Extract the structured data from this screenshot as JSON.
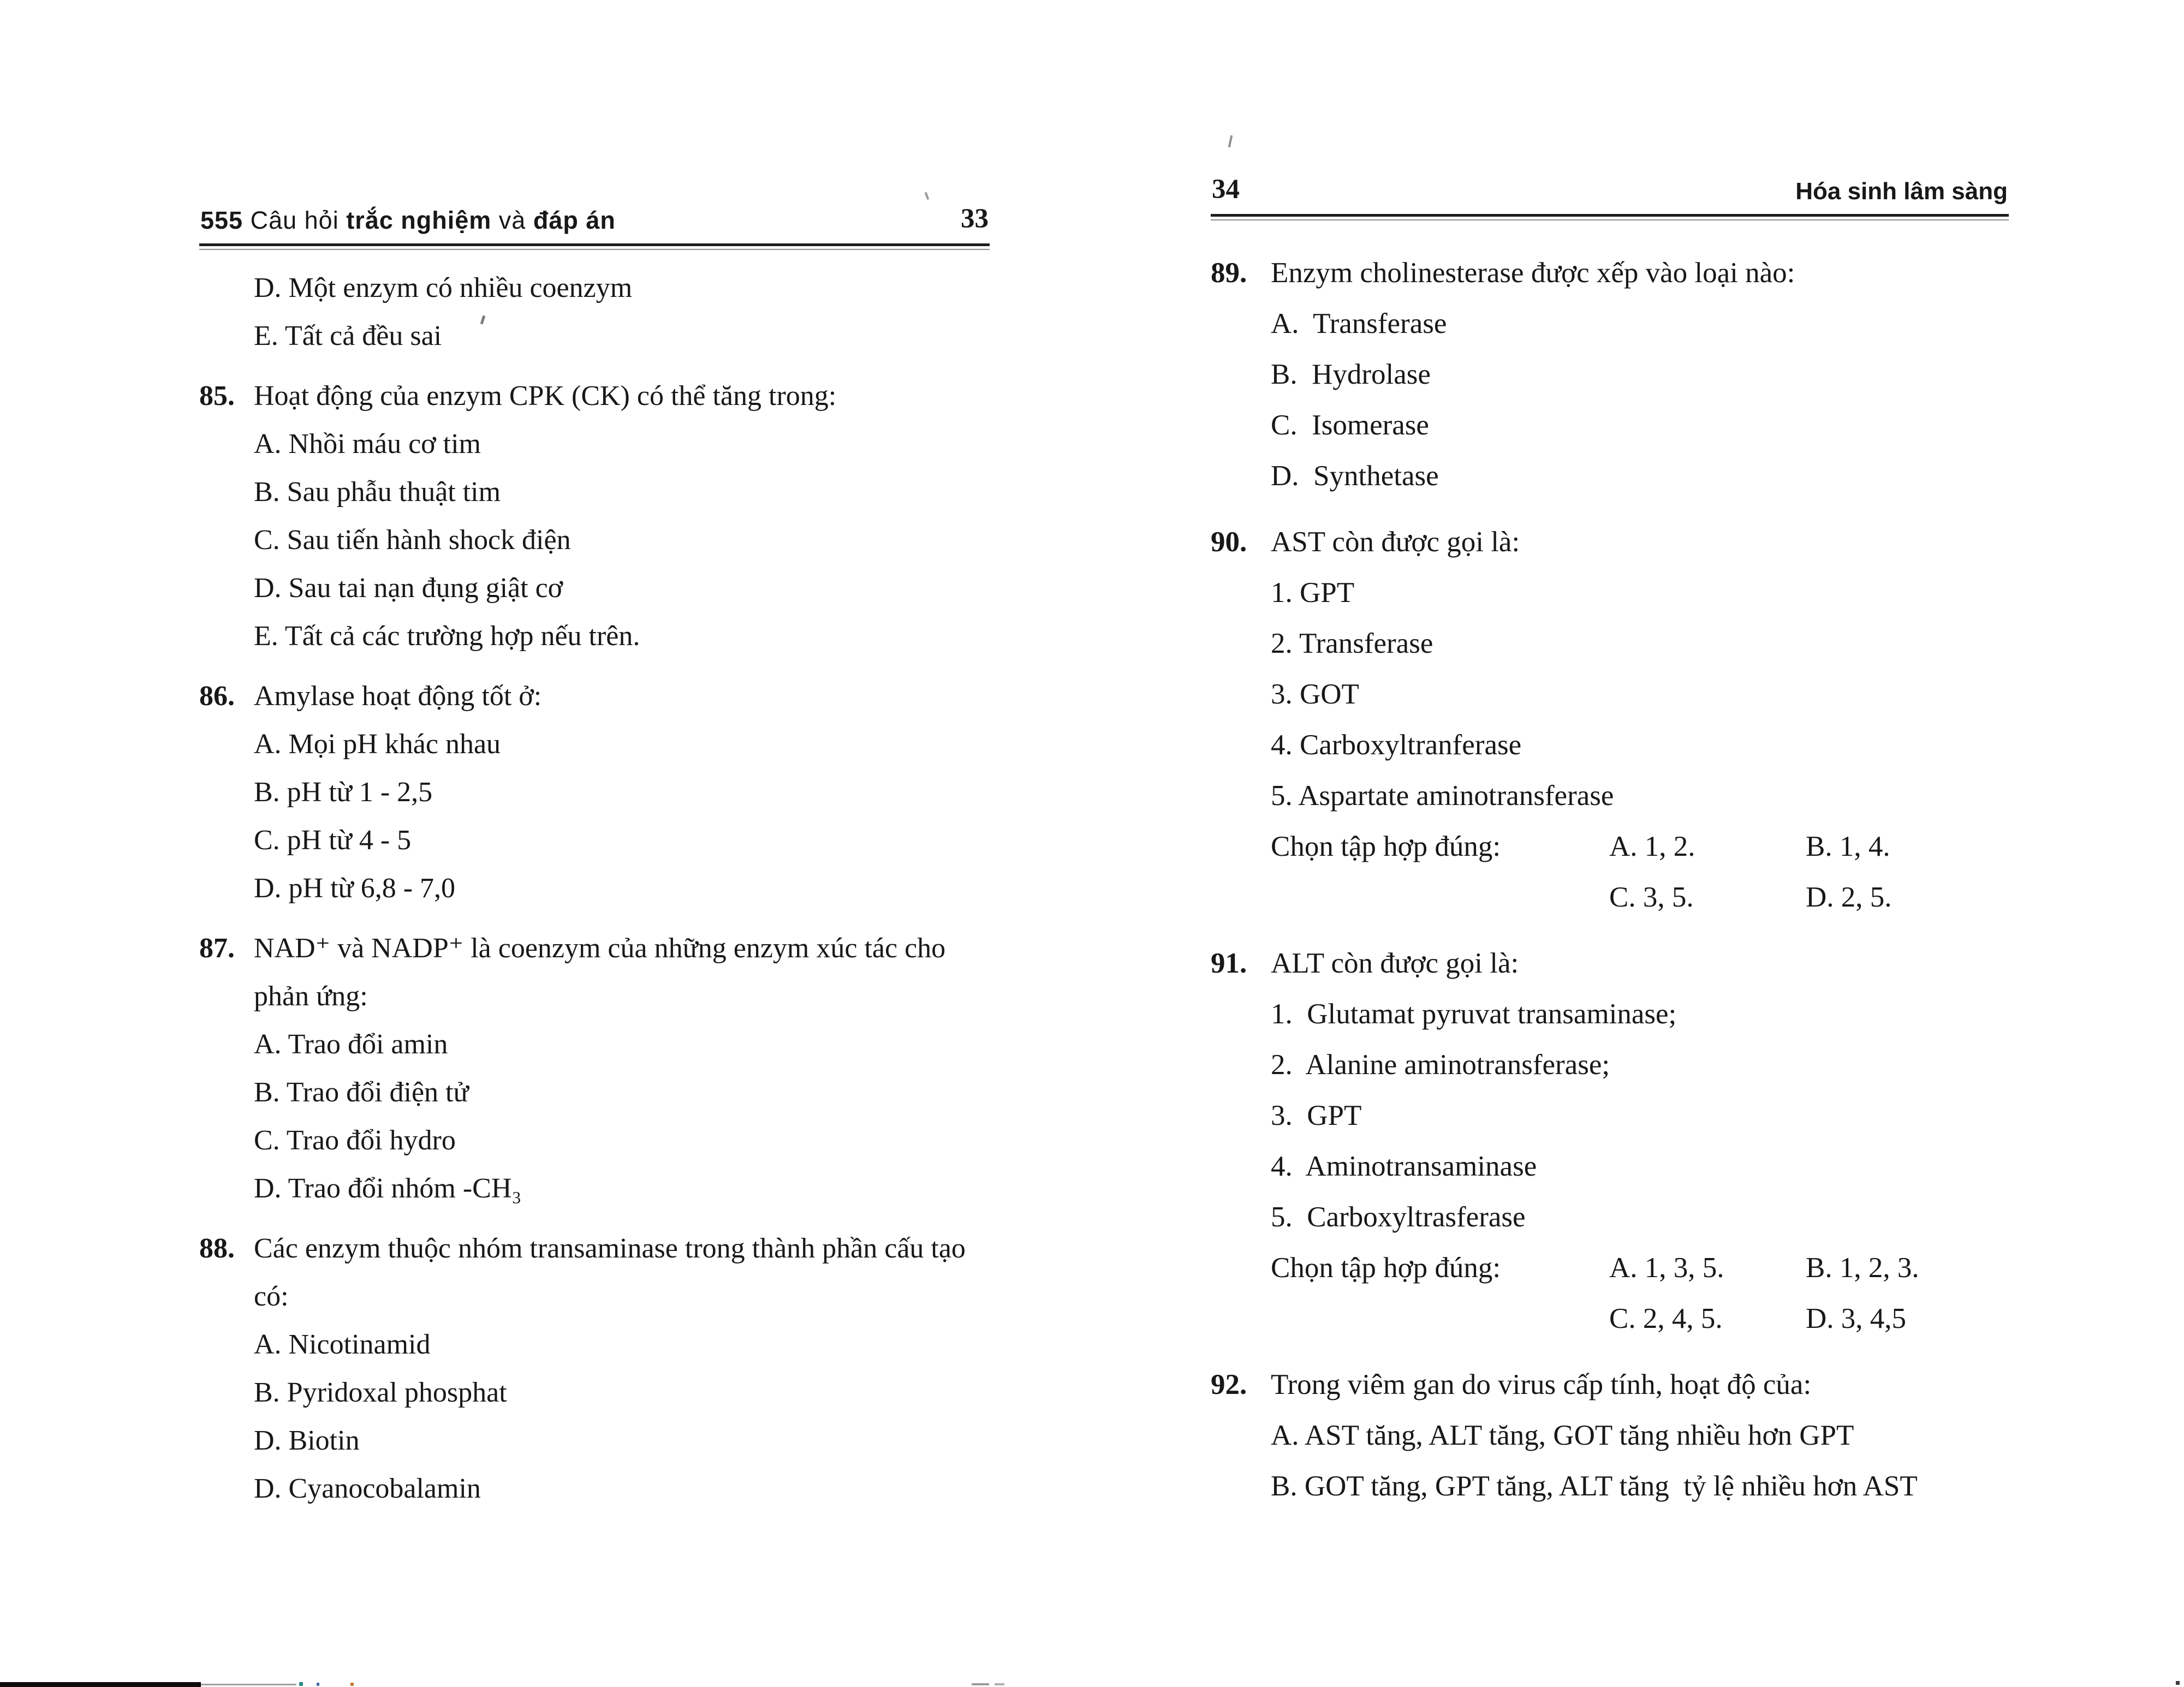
{
  "left": {
    "header": {
      "s1": "555",
      "s2": " Câu hỏi ",
      "s3": "trắc nghiệm",
      "s4": " và ",
      "s5": "đáp án",
      "page_number": "33"
    },
    "orphans": [
      "D. Một enzym có nhiều coenzym",
      "E. Tất cả đều sai"
    ],
    "q85": {
      "num": "85.",
      "text": "Hoạt động của enzym CPK (CK) có thể tăng trong:",
      "options": [
        "A. Nhồi máu cơ tim",
        "B. Sau phẫu thuật tim",
        "C. Sau tiến hành shock điện",
        "D. Sau tai nạn đụng giật cơ",
        "E. Tất cả các trường hợp nếu trên."
      ]
    },
    "q86": {
      "num": "86.",
      "text": "Amylase hoạt động tốt ở:",
      "options": [
        "A. Mọi pH khác nhau",
        "B. pH từ 1 - 2,5",
        "C. pH từ 4 - 5",
        "D. pH từ 6,8 - 7,0"
      ]
    },
    "q87": {
      "num": "87.",
      "text": "NAD⁺ và NADP⁺ là coenzym của những enzym xúc tác cho phản ứng:",
      "options": [
        "A. Trao đổi amin",
        "B. Trao đổi điện tử",
        "C. Trao đổi hydro",
        "D. Trao đổi nhóm -CH₃"
      ]
    },
    "q88": {
      "num": "88.",
      "text": "Các enzym thuộc nhóm transaminase trong thành phần cấu tạo có:",
      "options": [
        "A. Nicotinamid",
        "B. Pyridoxal phosphat",
        "D. Biotin",
        "D. Cyanocobalamin"
      ]
    }
  },
  "right": {
    "page_number": "34",
    "chapter_title": "Hóa sinh lâm sàng",
    "q89": {
      "num": "89.",
      "text": "Enzym cholinesterase được xếp vào loại nào:",
      "options": [
        "A.  Transferase",
        "B.  Hydrolase",
        "C.  Isomerase",
        "D.  Synthetase"
      ]
    },
    "q90": {
      "num": "90.",
      "text": "AST còn được gọi là:",
      "options": [
        "1. GPT",
        "2. Transferase",
        "3. GOT",
        "4. Carboxyltranferase",
        "5. Aspartate aminotransferase"
      ],
      "choose_label": "Chọn tập hợp đúng:",
      "a": "A. 1, 2.",
      "b": "B. 1, 4.",
      "c": "C. 3, 5.",
      "d": "D. 2, 5."
    },
    "q91": {
      "num": "91.",
      "text": "ALT còn được gọi là:",
      "options": [
        "1.  Glutamat pyruvat transaminase;",
        "2.  Alanine aminotransferase;",
        "3.  GPT",
        "4.  Aminotransaminase",
        "5.  Carboxyltrasferase"
      ],
      "choose_label": "Chọn tập hợp đúng:",
      "a": "A. 1, 3, 5.",
      "b": "B. 1, 2, 3.",
      "c": "C. 2, 4, 5.",
      "d": "D. 3, 4,5"
    },
    "q92": {
      "num": "92.",
      "text": "Trong viêm gan do virus cấp tính, hoạt độ của:",
      "options": [
        "A. AST tăng, ALT tăng, GOT tăng nhiều hơn GPT",
        "B. GOT tăng, GPT tăng, ALT tăng  tỷ lệ nhiều hơn AST"
      ]
    }
  }
}
